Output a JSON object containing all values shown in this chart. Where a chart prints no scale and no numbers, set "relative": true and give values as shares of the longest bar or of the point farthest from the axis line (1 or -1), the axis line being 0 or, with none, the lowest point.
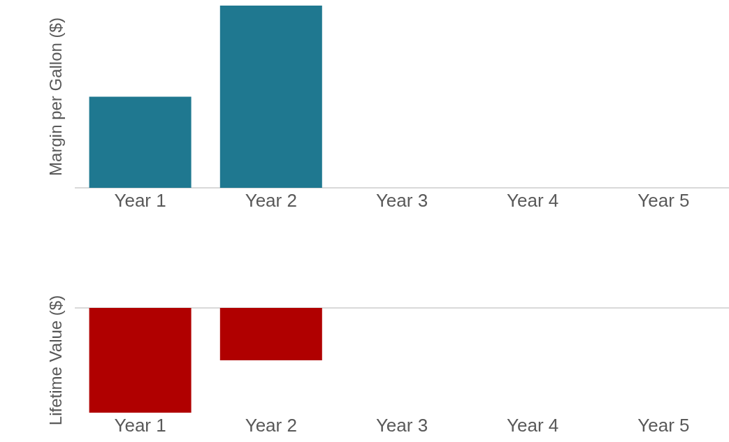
{
  "chart_data": [
    {
      "type": "bar",
      "ylabel": "Margin per Gallon ($)",
      "relative": true,
      "categories": [
        "Year 1",
        "Year 2",
        "Year 3",
        "Year 4",
        "Year 5"
      ],
      "values": [
        0.5,
        1,
        null,
        null,
        null
      ],
      "color": "#1f7890",
      "grid": false,
      "legend": false
    },
    {
      "type": "bar",
      "ylabel": "Lifetime Value ($)",
      "relative": true,
      "categories": [
        "Year 1",
        "Year 2",
        "Year 3",
        "Year 4",
        "Year 5"
      ],
      "values": [
        -1,
        -0.5,
        null,
        null,
        null
      ],
      "color": "#b00000",
      "grid": false,
      "legend": false
    }
  ]
}
